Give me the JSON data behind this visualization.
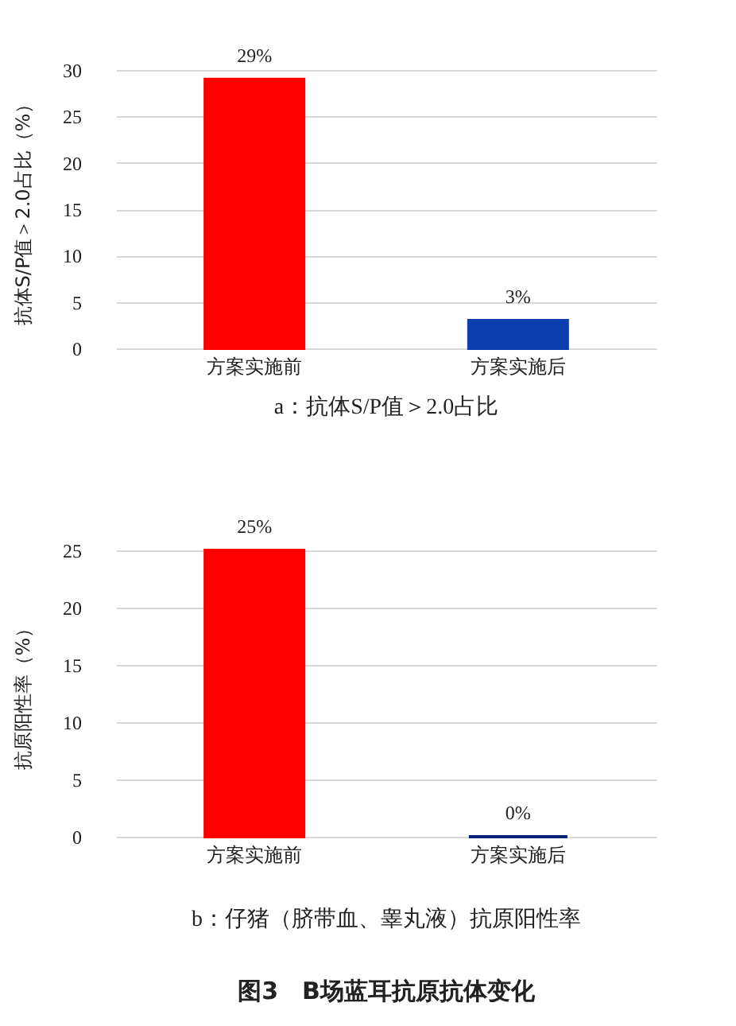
{
  "chart_data": [
    {
      "type": "bar",
      "title": "a：抗体S/P值＞2.0占比",
      "ylabel": "抗体S/P值＞2.0占比（%）",
      "categories": [
        "方案实施前",
        "方案实施后"
      ],
      "values": [
        29,
        3
      ],
      "colors": [
        "#ff0000",
        "#0d3eb0"
      ],
      "value_labels": [
        "29%",
        "3%"
      ],
      "ylim": [
        0,
        30
      ],
      "yticks": [
        0,
        5,
        10,
        15,
        20,
        25,
        30
      ],
      "grid": "y"
    },
    {
      "type": "bar",
      "title": "b：仔猪（脐带血、睾丸液）抗原阳性率",
      "ylabel": "抗原阳性率（%）",
      "categories": [
        "方案实施前",
        "方案实施后"
      ],
      "values": [
        25,
        0
      ],
      "colors": [
        "#ff0000",
        "#0a1f7a"
      ],
      "value_labels": [
        "25%",
        "0%"
      ],
      "ylim": [
        0,
        25
      ],
      "yticks": [
        0,
        5,
        10,
        15,
        20,
        25
      ],
      "grid": "y",
      "annotations": [
        "图3　B场蓝耳抗原抗体变化"
      ]
    }
  ]
}
